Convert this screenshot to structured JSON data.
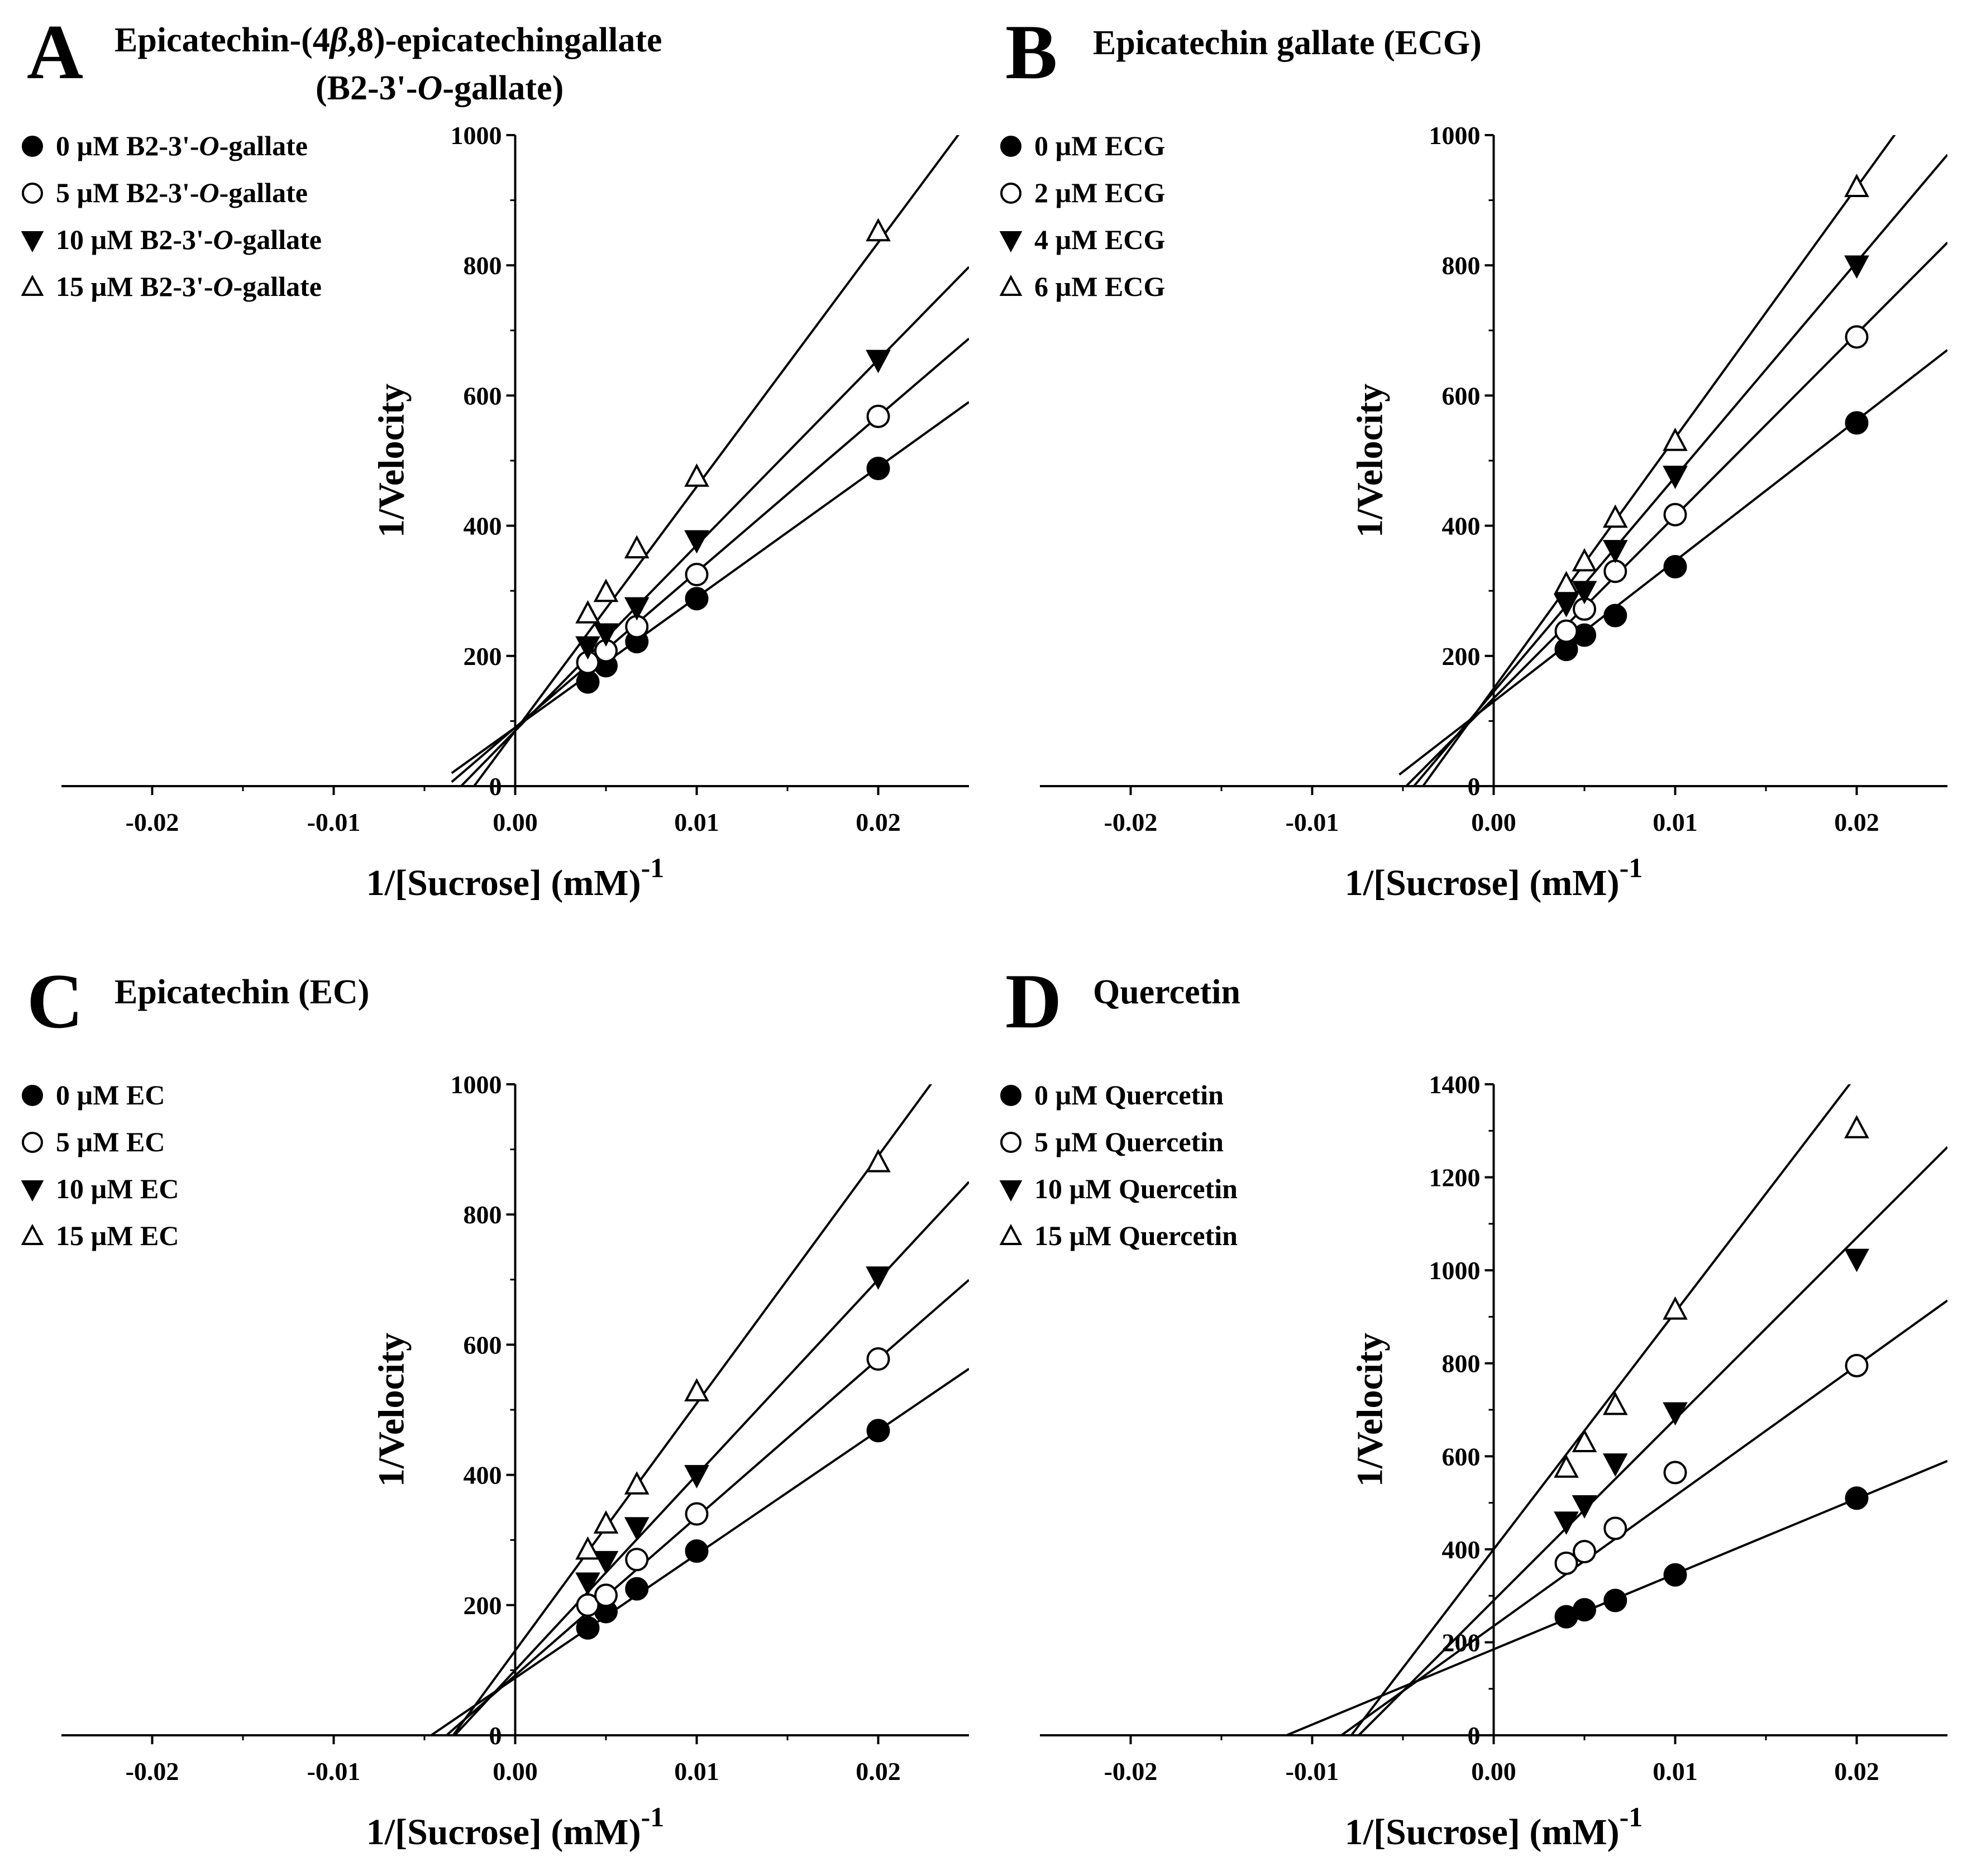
{
  "figure": {
    "background": "#ffffff",
    "ink": "#000000"
  },
  "chart_data": [
    {
      "type": "scatter",
      "panel_letter": "A",
      "title_lines": [
        [
          {
            "t": "Epicatechin-(4"
          },
          {
            "t": "β",
            "i": true
          },
          {
            "t": ",8)-epicatechingallate"
          }
        ],
        [
          {
            "t": "(B2-3'-"
          },
          {
            "t": "O",
            "i": true
          },
          {
            "t": "-gallate)"
          }
        ]
      ],
      "xlabel": "1/[Sucrose] (mM)",
      "xlabel_sup": "-1",
      "ylabel": "1/Velocity",
      "xlim": [
        -0.025,
        0.025
      ],
      "ylim": [
        0,
        1000
      ],
      "x_ticks": [
        -0.02,
        -0.01,
        0.0,
        0.01,
        0.02
      ],
      "x_tick_labels": [
        "-0.02",
        "-0.01",
        "0.00",
        "0.01",
        "0.02"
      ],
      "y_ticks": [
        0,
        200,
        400,
        600,
        800,
        1000
      ],
      "y_tick_labels": [
        "0",
        "200",
        "400",
        "600",
        "800",
        "1000"
      ],
      "line_x_start": -0.0035,
      "series": [
        {
          "name": [
            {
              "t": "0 µM B2-3'-"
            },
            {
              "t": "O",
              "i": true
            },
            {
              "t": "-gallate"
            }
          ],
          "marker": "filled-circle",
          "x": [
            0.004,
            0.005,
            0.0067,
            0.01,
            0.02
          ],
          "y": [
            160,
            185,
            222,
            288,
            488
          ],
          "fit": {
            "slope": 20000,
            "intercept": 90
          }
        },
        {
          "name": [
            {
              "t": "5 µM B2-3'-"
            },
            {
              "t": "O",
              "i": true
            },
            {
              "t": "-gallate"
            }
          ],
          "marker": "open-circle",
          "x": [
            0.004,
            0.005,
            0.0067,
            0.01,
            0.02
          ],
          "y": [
            190,
            208,
            245,
            325,
            568
          ],
          "fit": {
            "slope": 23900,
            "intercept": 90
          }
        },
        {
          "name": [
            {
              "t": "10 µM B2-3'-"
            },
            {
              "t": "O",
              "i": true
            },
            {
              "t": "-gallate"
            }
          ],
          "marker": "filled-triangle-down",
          "x": [
            0.004,
            0.005,
            0.0067,
            0.01,
            0.02
          ],
          "y": [
            215,
            235,
            275,
            378,
            655
          ],
          "fit": {
            "slope": 28500,
            "intercept": 85
          }
        },
        {
          "name": [
            {
              "t": "15 µM B2-3'-"
            },
            {
              "t": "O",
              "i": true
            },
            {
              "t": "-gallate"
            }
          ],
          "marker": "open-triangle-up",
          "x": [
            0.004,
            0.005,
            0.0067,
            0.01,
            0.02
          ],
          "y": [
            265,
            298,
            365,
            475,
            852
          ],
          "fit": {
            "slope": 37500,
            "intercept": 85
          }
        }
      ]
    },
    {
      "type": "scatter",
      "panel_letter": "B",
      "title_lines": [
        [
          {
            "t": "Epicatechin gallate (ECG)"
          }
        ]
      ],
      "xlabel": "1/[Sucrose] (mM)",
      "xlabel_sup": "-1",
      "ylabel": "1/Velocity",
      "xlim": [
        -0.025,
        0.025
      ],
      "ylim": [
        0,
        1000
      ],
      "x_ticks": [
        -0.02,
        -0.01,
        0.0,
        0.01,
        0.02
      ],
      "x_tick_labels": [
        "-0.02",
        "-0.01",
        "0.00",
        "0.01",
        "0.02"
      ],
      "y_ticks": [
        0,
        200,
        400,
        600,
        800,
        1000
      ],
      "y_tick_labels": [
        "0",
        "200",
        "400",
        "600",
        "800",
        "1000"
      ],
      "line_x_start": -0.0052,
      "series": [
        {
          "name": [
            {
              "t": "0 µM ECG"
            }
          ],
          "marker": "filled-circle",
          "x": [
            0.004,
            0.005,
            0.0067,
            0.01,
            0.02
          ],
          "y": [
            210,
            232,
            262,
            337,
            558
          ],
          "fit": {
            "slope": 21600,
            "intercept": 130
          }
        },
        {
          "name": [
            {
              "t": "2 µM ECG"
            }
          ],
          "marker": "open-circle",
          "x": [
            0.004,
            0.005,
            0.0067,
            0.01,
            0.02
          ],
          "y": [
            238,
            272,
            330,
            417,
            690
          ],
          "fit": {
            "slope": 28000,
            "intercept": 135
          }
        },
        {
          "name": [
            {
              "t": "4 µM ECG"
            }
          ],
          "marker": "filled-triangle-down",
          "x": [
            0.004,
            0.005,
            0.0067,
            0.01,
            0.02
          ],
          "y": [
            280,
            300,
            363,
            477,
            800
          ],
          "fit": {
            "slope": 33000,
            "intercept": 145
          }
        },
        {
          "name": [
            {
              "t": "6 µM ECG"
            }
          ],
          "marker": "open-triangle-up",
          "x": [
            0.004,
            0.005,
            0.0067,
            0.01,
            0.02
          ],
          "y": [
            310,
            345,
            412,
            530,
            920
          ],
          "fit": {
            "slope": 38500,
            "intercept": 150
          }
        }
      ]
    },
    {
      "type": "scatter",
      "panel_letter": "C",
      "title_lines": [
        [
          {
            "t": "Epicatechin (EC)"
          }
        ]
      ],
      "xlabel": "1/[Sucrose] (mM)",
      "xlabel_sup": "-1",
      "ylabel": "1/Velocity",
      "xlim": [
        -0.025,
        0.025
      ],
      "ylim": [
        0,
        1000
      ],
      "x_ticks": [
        -0.02,
        -0.01,
        0.0,
        0.01,
        0.02
      ],
      "x_tick_labels": [
        "-0.02",
        "-0.01",
        "0.00",
        "0.01",
        "0.02"
      ],
      "y_ticks": [
        0,
        200,
        400,
        600,
        800,
        1000
      ],
      "y_tick_labels": [
        "0",
        "200",
        "400",
        "600",
        "800",
        "1000"
      ],
      "line_x_start": -0.0046,
      "series": [
        {
          "name": [
            {
              "t": "0 µM EC"
            }
          ],
          "marker": "filled-circle",
          "x": [
            0.004,
            0.005,
            0.0067,
            0.01,
            0.02
          ],
          "y": [
            165,
            190,
            225,
            283,
            468
          ],
          "fit": {
            "slope": 19000,
            "intercept": 88
          }
        },
        {
          "name": [
            {
              "t": "5 µM EC"
            }
          ],
          "marker": "open-circle",
          "x": [
            0.004,
            0.005,
            0.0067,
            0.01,
            0.02
          ],
          "y": [
            200,
            215,
            270,
            340,
            578
          ],
          "fit": {
            "slope": 24300,
            "intercept": 92
          }
        },
        {
          "name": [
            {
              "t": "10 µM EC"
            }
          ],
          "marker": "filled-triangle-down",
          "x": [
            0.004,
            0.005,
            0.0067,
            0.01,
            0.02
          ],
          "y": [
            235,
            268,
            320,
            400,
            705
          ],
          "fit": {
            "slope": 30000,
            "intercept": 100
          }
        },
        {
          "name": [
            {
              "t": "15 µM EC"
            }
          ],
          "marker": "open-triangle-up",
          "x": [
            0.004,
            0.005,
            0.0067,
            0.01,
            0.02
          ],
          "y": [
            285,
            325,
            385,
            528,
            880
          ],
          "fit": {
            "slope": 38000,
            "intercept": 130
          }
        }
      ]
    },
    {
      "type": "scatter",
      "panel_letter": "D",
      "title_lines": [
        [
          {
            "t": "Quercetin"
          }
        ]
      ],
      "xlabel": "1/[Sucrose] (mM)",
      "xlabel_sup": "-1",
      "ylabel": "1/Velocity",
      "xlim": [
        -0.025,
        0.025
      ],
      "ylim": [
        0,
        1400
      ],
      "x_ticks": [
        -0.02,
        -0.01,
        0.0,
        0.01,
        0.02
      ],
      "x_tick_labels": [
        "-0.02",
        "-0.01",
        "0.00",
        "0.01",
        "0.02"
      ],
      "y_ticks": [
        0,
        200,
        400,
        600,
        800,
        1000,
        1200,
        1400
      ],
      "y_tick_labels": [
        "0",
        "200",
        "400",
        "600",
        "800",
        "1000",
        "1200",
        "1400"
      ],
      "line_x_start": -0.012,
      "series": [
        {
          "name": [
            {
              "t": "0 µM Quercetin"
            }
          ],
          "marker": "filled-circle",
          "x": [
            0.004,
            0.005,
            0.0067,
            0.01,
            0.02
          ],
          "y": [
            255,
            270,
            290,
            345,
            510
          ],
          "fit": {
            "slope": 16200,
            "intercept": 185
          }
        },
        {
          "name": [
            {
              "t": "5 µM Quercetin"
            }
          ],
          "marker": "open-circle",
          "x": [
            0.004,
            0.005,
            0.0067,
            0.01,
            0.02
          ],
          "y": [
            370,
            395,
            445,
            565,
            795
          ],
          "fit": {
            "slope": 28000,
            "intercept": 235
          }
        },
        {
          "name": [
            {
              "t": "10 µM Quercetin"
            }
          ],
          "marker": "filled-triangle-down",
          "x": [
            0.004,
            0.005,
            0.0067,
            0.01,
            0.02
          ],
          "y": [
            460,
            495,
            585,
            695,
            1025
          ],
          "fit": {
            "slope": 39000,
            "intercept": 290
          }
        },
        {
          "name": [
            {
              "t": "15 µM Quercetin"
            }
          ],
          "marker": "open-triangle-up",
          "x": [
            0.004,
            0.005,
            0.0067,
            0.01,
            0.02
          ],
          "y": [
            575,
            630,
            710,
            915,
            1305
          ],
          "fit": {
            "slope": 51000,
            "intercept": 400
          }
        }
      ]
    }
  ]
}
